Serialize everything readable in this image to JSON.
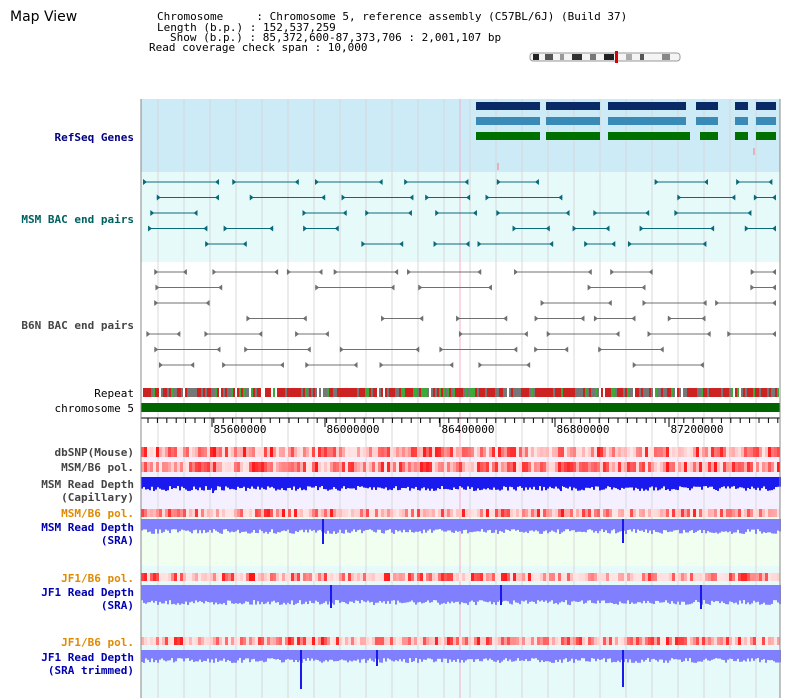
{
  "app": {
    "title": "Map View"
  },
  "info": {
    "chromosome_line": "Chromosome     : Chromosome 5, reference assembly (C57BL/6J) (Build 37)",
    "length_line": "Length (b.p.) : 152,537,259",
    "show_line": "Show (b.p.) : 85,372,600-87,373,706 : 2,001,107 bp",
    "coverage_line": "Read coverage check span : 10,000"
  },
  "tracks": {
    "refseq": "RefSeq Genes",
    "msm_bac": "MSM BAC end pairs",
    "b6n_bac": "B6N BAC end pairs",
    "repeat": "Repeat",
    "chromosome": "chromosome 5",
    "dbsnp": "dbSNP(Mouse)",
    "msm_b6_pol": "MSM/B6 pol.",
    "msm_depth_cap_1": "MSM Read Depth",
    "msm_depth_cap_2": "(Capillary)",
    "msm_b6_pol_sra": "MSM/B6 pol.",
    "msm_depth_sra_1": "MSM Read Depth",
    "msm_depth_sra_2": "(SRA)",
    "jf1_b6_pol": "JF1/B6 pol.",
    "jf1_depth_sra_1": "JF1 Read Depth",
    "jf1_depth_sra_2": "(SRA)",
    "jf1_b6_pol_trim": "JF1/B6 pol.",
    "jf1_depth_trim_1": "JF1 Read Depth",
    "jf1_depth_trim_2": "(SRA trimmed)"
  },
  "axis": {
    "ticks": [
      "85600000",
      "86000000",
      "86400000",
      "86800000",
      "87200000"
    ]
  },
  "colors": {
    "refseq_bg": "#cdeaf7",
    "bac_bg": "#e6fafa",
    "b6n_bg": "#ffffff",
    "navy_gene": "#0a2a66",
    "teal_gene": "#3a8ab8",
    "green_gene": "#007000",
    "chromosome_bar": "#006400",
    "msm_line": "#0a6a7a",
    "b6n_line": "#707070",
    "depth_blue": "#1a1aee",
    "depth_light": "#8080ff"
  }
}
